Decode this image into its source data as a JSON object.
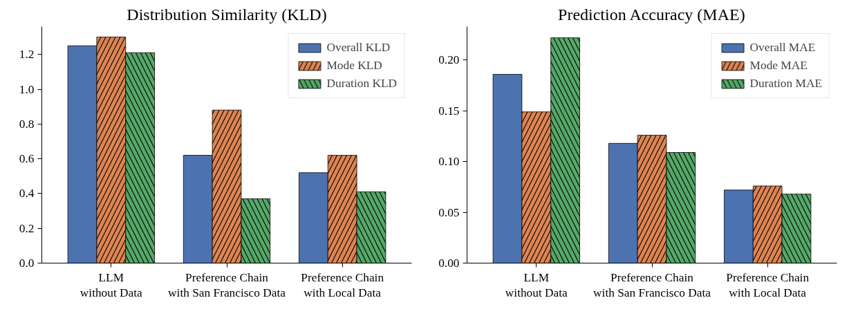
{
  "chart_data": [
    {
      "type": "bar",
      "title": "Distribution Similarity (KLD)",
      "categories": [
        "LLM\nwithout Data",
        "Preference Chain\nwith San Francisco Data",
        "Preference Chain\nwith Local Data"
      ],
      "series": [
        {
          "name": "Overall KLD",
          "color": "#4c72b0",
          "values": [
            1.25,
            0.62,
            0.52
          ]
        },
        {
          "name": "Mode KLD",
          "color": "#dd8452",
          "values": [
            1.3,
            0.88,
            0.62
          ]
        },
        {
          "name": "Duration KLD",
          "color": "#55a868",
          "values": [
            1.21,
            0.37,
            0.41
          ]
        }
      ],
      "ylim": [
        0,
        1.36
      ],
      "yticks": [
        {
          "value": 0,
          "label": "0.0"
        },
        0.2,
        0.4,
        0.6,
        0.8,
        {
          "value": 1,
          "label": "1.0"
        },
        1.2
      ],
      "grid": false,
      "legend": "top right"
    },
    {
      "type": "bar",
      "title": "Prediction Accuracy (MAE)",
      "categories": [
        "LLM\nwithout Data",
        "Preference Chain\nwith San Francisco Data",
        "Preference Chain\nwith Local Data"
      ],
      "series": [
        {
          "name": "Overall MAE",
          "color": "#4c72b0",
          "values": [
            0.186,
            0.118,
            0.072
          ]
        },
        {
          "name": "Mode MAE",
          "color": "#dd8452",
          "values": [
            0.149,
            0.126,
            0.076
          ]
        },
        {
          "name": "Duration MAE",
          "color": "#55a868",
          "values": [
            0.222,
            0.109,
            0.068
          ]
        }
      ],
      "ylim": [
        0,
        0.233
      ],
      "yticks": [
        {
          "value": 0,
          "label": "0.00"
        },
        0.05,
        {
          "value": 0.1,
          "label": "0.10"
        },
        0.15,
        {
          "value": 0.2,
          "label": "0.20"
        }
      ],
      "grid": false,
      "legend": "top right"
    }
  ]
}
